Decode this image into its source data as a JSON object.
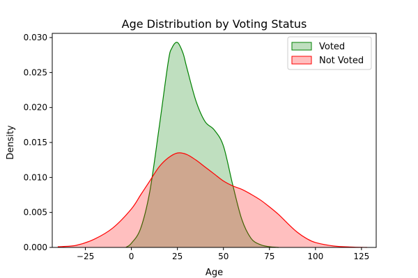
{
  "chart_data": {
    "type": "area",
    "title": "Age Distribution by Voting Status",
    "xlabel": "Age",
    "ylabel": "Density",
    "xlim": [
      -43,
      133
    ],
    "ylim": [
      0,
      0.0306
    ],
    "xticks": [
      -25,
      0,
      25,
      50,
      75,
      100,
      125
    ],
    "xtick_labels": [
      "−25",
      "0",
      "25",
      "50",
      "75",
      "100",
      "125"
    ],
    "yticks": [
      0,
      0.005,
      0.01,
      0.015,
      0.02,
      0.025,
      0.03
    ],
    "ytick_labels": [
      "0.000",
      "0.005",
      "0.010",
      "0.015",
      "0.020",
      "0.025",
      "0.030"
    ],
    "grid": false,
    "legend": {
      "position": "top-right"
    },
    "series": [
      {
        "name": "Voted",
        "stroke_color": "#008000",
        "fill_color": "#008000",
        "fill_opacity": 0.25,
        "x": [
          -3,
          0,
          5,
          10,
          15,
          20,
          22,
          25,
          28,
          30,
          35,
          40,
          45,
          50,
          55,
          60,
          65,
          70,
          75,
          80
        ],
        "y": [
          0,
          0.0006,
          0.0027,
          0.008,
          0.017,
          0.0265,
          0.0285,
          0.0293,
          0.0278,
          0.0258,
          0.021,
          0.018,
          0.0168,
          0.0145,
          0.009,
          0.004,
          0.0013,
          0.0004,
          0.0001,
          0
        ]
      },
      {
        "name": "Not Voted",
        "stroke_color": "#ff0000",
        "fill_color": "#ff0000",
        "fill_opacity": 0.25,
        "x": [
          -40,
          -30,
          -20,
          -10,
          0,
          5,
          10,
          15,
          20,
          25,
          30,
          35,
          40,
          45,
          50,
          55,
          60,
          65,
          70,
          75,
          80,
          85,
          90,
          95,
          100,
          110,
          120,
          128
        ],
        "y": [
          0.0001,
          0.0003,
          0.0012,
          0.0028,
          0.0055,
          0.0075,
          0.0095,
          0.0115,
          0.0128,
          0.0135,
          0.0133,
          0.0125,
          0.0115,
          0.0105,
          0.0095,
          0.0088,
          0.0083,
          0.0076,
          0.0068,
          0.0058,
          0.0047,
          0.0034,
          0.0022,
          0.0013,
          0.0007,
          0.0002,
          5e-05,
          0
        ]
      }
    ]
  }
}
